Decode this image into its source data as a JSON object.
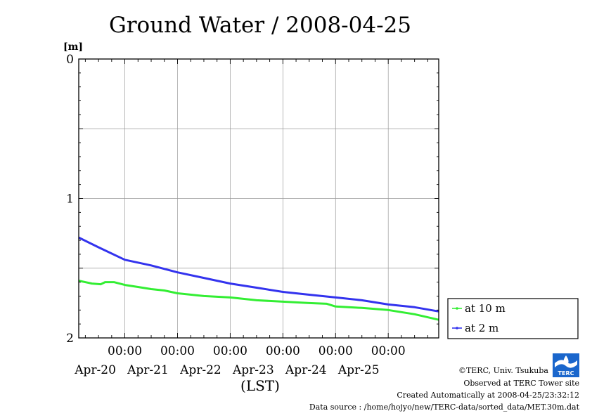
{
  "chart_data": {
    "type": "line",
    "title": "Ground Water / 2008-04-25",
    "ylabel": "[m]",
    "xlabel": "(LST)",
    "y_inverted": true,
    "ylim": [
      0,
      2
    ],
    "yticks": [
      "0",
      "1",
      "2"
    ],
    "xlim": [
      "2008-04-19T03:00",
      "2008-04-25T23:00"
    ],
    "x_time_ticks": [
      {
        "time": "2008-04-20T00:00",
        "label": "00:00",
        "date": "Apr-20"
      },
      {
        "time": "2008-04-21T00:00",
        "label": "00:00",
        "date": "Apr-21"
      },
      {
        "time": "2008-04-22T00:00",
        "label": "00:00",
        "date": "Apr-22"
      },
      {
        "time": "2008-04-23T00:00",
        "label": "00:00",
        "date": "Apr-23"
      },
      {
        "time": "2008-04-24T00:00",
        "label": "00:00",
        "date": "Apr-24"
      },
      {
        "time": "2008-04-25T00:00",
        "label": "00:00",
        "date": "Apr-25"
      }
    ],
    "grid": true,
    "legend_position": "right-lower",
    "series": [
      {
        "name": "at 10 m",
        "color": "#33ee33",
        "points": [
          [
            "2008-04-19T03:00",
            1.59
          ],
          [
            "2008-04-19T09:00",
            1.61
          ],
          [
            "2008-04-19T13:00",
            1.615
          ],
          [
            "2008-04-19T15:00",
            1.6
          ],
          [
            "2008-04-19T19:00",
            1.6
          ],
          [
            "2008-04-20T00:00",
            1.62
          ],
          [
            "2008-04-20T06:00",
            1.635
          ],
          [
            "2008-04-20T12:00",
            1.65
          ],
          [
            "2008-04-20T18:00",
            1.66
          ],
          [
            "2008-04-21T00:00",
            1.68
          ],
          [
            "2008-04-21T12:00",
            1.7
          ],
          [
            "2008-04-22T00:00",
            1.71
          ],
          [
            "2008-04-22T12:00",
            1.73
          ],
          [
            "2008-04-23T00:00",
            1.74
          ],
          [
            "2008-04-23T12:00",
            1.75
          ],
          [
            "2008-04-23T20:00",
            1.755
          ],
          [
            "2008-04-24T00:00",
            1.775
          ],
          [
            "2008-04-24T12:00",
            1.785
          ],
          [
            "2008-04-25T00:00",
            1.8
          ],
          [
            "2008-04-25T12:00",
            1.83
          ],
          [
            "2008-04-25T23:00",
            1.87
          ]
        ]
      },
      {
        "name": "at 2 m",
        "color": "#3333ee",
        "points": [
          [
            "2008-04-19T03:00",
            1.28
          ],
          [
            "2008-04-19T12:00",
            1.35
          ],
          [
            "2008-04-20T00:00",
            1.44
          ],
          [
            "2008-04-20T12:00",
            1.48
          ],
          [
            "2008-04-21T00:00",
            1.53
          ],
          [
            "2008-04-21T12:00",
            1.57
          ],
          [
            "2008-04-22T00:00",
            1.61
          ],
          [
            "2008-04-22T12:00",
            1.64
          ],
          [
            "2008-04-23T00:00",
            1.67
          ],
          [
            "2008-04-23T12:00",
            1.69
          ],
          [
            "2008-04-24T00:00",
            1.71
          ],
          [
            "2008-04-24T12:00",
            1.73
          ],
          [
            "2008-04-25T00:00",
            1.76
          ],
          [
            "2008-04-25T12:00",
            1.78
          ],
          [
            "2008-04-25T23:00",
            1.81
          ]
        ]
      }
    ]
  },
  "footer": {
    "copyright": "©TERC, Univ. Tsukuba",
    "observed": "Observed at TERC Tower site",
    "created": "Created Automatically at 2008-04-25/23:32:12",
    "source": "Data source : /home/hojyo/new/TERC-data/sorted_data/MET.30m.dat"
  },
  "logo": {
    "text": "TERC",
    "color": "#1a66cc"
  }
}
